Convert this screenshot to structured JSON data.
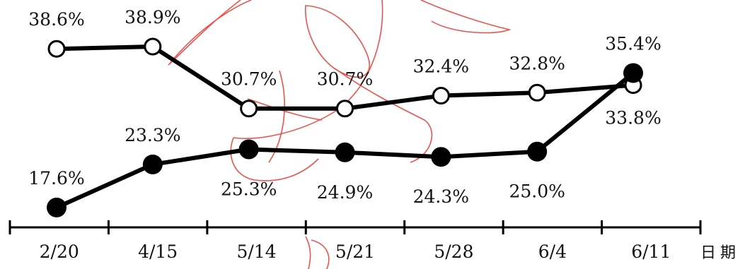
{
  "chart_data": {
    "type": "line",
    "x_unit_label": "日期",
    "categories": [
      "2/20",
      "4/15",
      "5/14",
      "5/21",
      "5/28",
      "6/4",
      "6/11"
    ],
    "series": [
      {
        "marker": "open-circle",
        "values": [
          38.6,
          38.9,
          30.7,
          30.7,
          32.4,
          32.8,
          33.8
        ],
        "labels": [
          "38.6%",
          "38.9%",
          "30.7%",
          "30.7%",
          "32.4%",
          "32.8%",
          "33.8%"
        ]
      },
      {
        "marker": "filled-circle",
        "values": [
          17.6,
          23.3,
          25.3,
          24.9,
          24.3,
          25.0,
          35.4
        ],
        "labels": [
          "17.6%",
          "23.3%",
          "25.3%",
          "24.9%",
          "24.3%",
          "25.0%",
          "35.4%"
        ]
      }
    ],
    "legend": "none",
    "grid": false,
    "colors": {
      "line": "#000000",
      "watermark": "#e8423c"
    }
  }
}
